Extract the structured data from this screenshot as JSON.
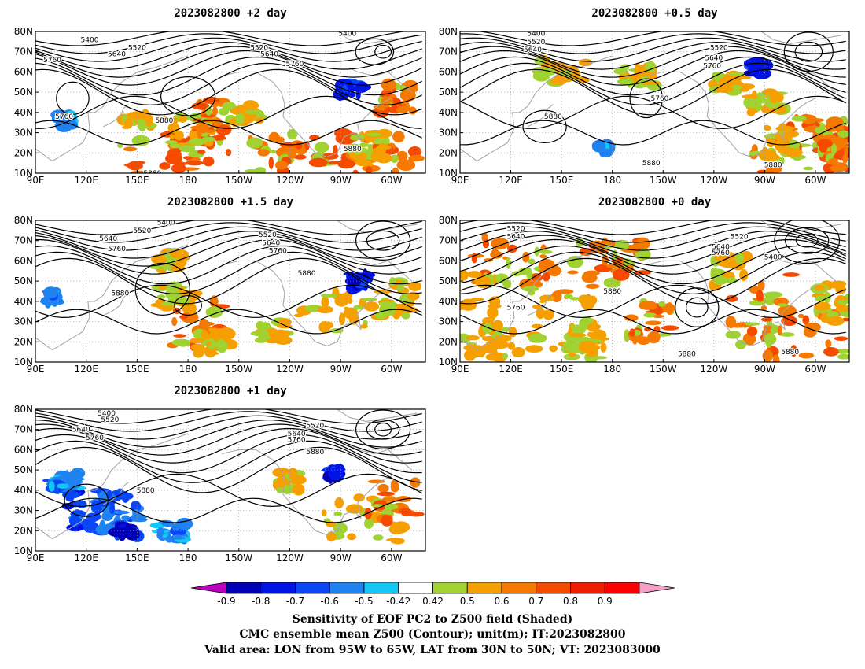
{
  "figure": {
    "axes": {
      "lon_labels": [
        "90E",
        "120E",
        "150E",
        "180",
        "150W",
        "120W",
        "90W",
        "60W"
      ],
      "lat_labels": [
        "10N",
        "20N",
        "30N",
        "40N",
        "50N",
        "60N",
        "70N",
        "80N"
      ],
      "lon_range": [
        90,
        320
      ],
      "lat_range": [
        10,
        80
      ]
    },
    "panels": [
      {
        "id": "p2day",
        "title": "2023082800  +2 day",
        "labels": [
          {
            "text": "5400",
            "lon": 122,
            "lat": 76
          },
          {
            "text": "5520",
            "lon": 150,
            "lat": 72
          },
          {
            "text": "5640",
            "lon": 138,
            "lat": 69
          },
          {
            "text": "5760",
            "lon": 100,
            "lat": 66
          },
          {
            "text": "5520",
            "lon": 222,
            "lat": 72
          },
          {
            "text": "5640",
            "lon": 228,
            "lat": 69
          },
          {
            "text": "5760",
            "lon": 243,
            "lat": 64
          },
          {
            "text": "5400",
            "lon": 274,
            "lat": 79
          },
          {
            "text": "5760",
            "lon": 107,
            "lat": 38
          },
          {
            "text": "5880",
            "lon": 166,
            "lat": 36
          },
          {
            "text": "5880",
            "lon": 277,
            "lat": 22
          },
          {
            "text": "5880",
            "lon": 159,
            "lat": 10
          }
        ]
      },
      {
        "id": "p05day",
        "title": "2023082800  +0.5 day",
        "labels": [
          {
            "text": "5400",
            "lon": 135,
            "lat": 79
          },
          {
            "text": "5520",
            "lon": 135,
            "lat": 75
          },
          {
            "text": "5640",
            "lon": 133,
            "lat": 71
          },
          {
            "text": "5520",
            "lon": 243,
            "lat": 72
          },
          {
            "text": "5640",
            "lon": 240,
            "lat": 67
          },
          {
            "text": "5760",
            "lon": 239,
            "lat": 63
          },
          {
            "text": "5760",
            "lon": 208,
            "lat": 47
          },
          {
            "text": "5880",
            "lon": 145,
            "lat": 38
          },
          {
            "text": "5880",
            "lon": 203,
            "lat": 15
          },
          {
            "text": "5880",
            "lon": 275,
            "lat": 14
          }
        ]
      },
      {
        "id": "p15day",
        "title": "2023082800  +1.5 day",
        "labels": [
          {
            "text": "5400",
            "lon": 167,
            "lat": 79
          },
          {
            "text": "5520",
            "lon": 153,
            "lat": 75
          },
          {
            "text": "5640",
            "lon": 133,
            "lat": 71
          },
          {
            "text": "5760",
            "lon": 138,
            "lat": 66
          },
          {
            "text": "5520",
            "lon": 227,
            "lat": 73
          },
          {
            "text": "5640",
            "lon": 229,
            "lat": 69
          },
          {
            "text": "5760",
            "lon": 233,
            "lat": 65
          },
          {
            "text": "5880",
            "lon": 250,
            "lat": 54
          },
          {
            "text": "5880",
            "lon": 140,
            "lat": 44
          }
        ]
      },
      {
        "id": "p0day",
        "title": "2023082800  +0 day",
        "labels": [
          {
            "text": "5520",
            "lon": 123,
            "lat": 76
          },
          {
            "text": "5640",
            "lon": 123,
            "lat": 72
          },
          {
            "text": "5520",
            "lon": 255,
            "lat": 72
          },
          {
            "text": "5640",
            "lon": 244,
            "lat": 67
          },
          {
            "text": "5760",
            "lon": 244,
            "lat": 64
          },
          {
            "text": "5400",
            "lon": 275,
            "lat": 62
          },
          {
            "text": "5880",
            "lon": 180,
            "lat": 45
          },
          {
            "text": "5760",
            "lon": 123,
            "lat": 37
          },
          {
            "text": "5880",
            "lon": 224,
            "lat": 14
          },
          {
            "text": "5880",
            "lon": 285,
            "lat": 15
          }
        ]
      },
      {
        "id": "p1day",
        "title": "2023082800  +1 day",
        "labels": [
          {
            "text": "5400",
            "lon": 132,
            "lat": 78
          },
          {
            "text": "5520",
            "lon": 134,
            "lat": 75
          },
          {
            "text": "5640",
            "lon": 117,
            "lat": 70
          },
          {
            "text": "5760",
            "lon": 125,
            "lat": 66
          },
          {
            "text": "5520",
            "lon": 255,
            "lat": 72
          },
          {
            "text": "5640",
            "lon": 244,
            "lat": 68
          },
          {
            "text": "5760",
            "lon": 244,
            "lat": 65
          },
          {
            "text": "5880",
            "lon": 255,
            "lat": 59
          },
          {
            "text": "5880",
            "lon": 155,
            "lat": 40
          }
        ]
      }
    ],
    "colorbar": {
      "ticks": [
        "-0.9",
        "-0.8",
        "-0.7",
        "-0.6",
        "-0.5",
        "-0.42",
        "0.42",
        "0.5",
        "0.6",
        "0.7",
        "0.8",
        "0.9"
      ],
      "colors": [
        "#c000c0",
        "#0000b4",
        "#0014e6",
        "#0a46f5",
        "#1e82f0",
        "#14c8f5",
        "#ffffff",
        "#a0d232",
        "#f5a000",
        "#f57800",
        "#f54b00",
        "#f01e00",
        "#ff0000",
        "#f5a0c8"
      ]
    },
    "caption": {
      "line1": "Sensitivity of EOF PC2 to Z500 field (Shaded)",
      "line2": "CMC ensemble mean Z500 (Contour); unit(m); IT:2023082800",
      "line3": "Valid area: LON from 95W to 65W, LAT from 30N to 50N; VT: 2023083000"
    }
  }
}
